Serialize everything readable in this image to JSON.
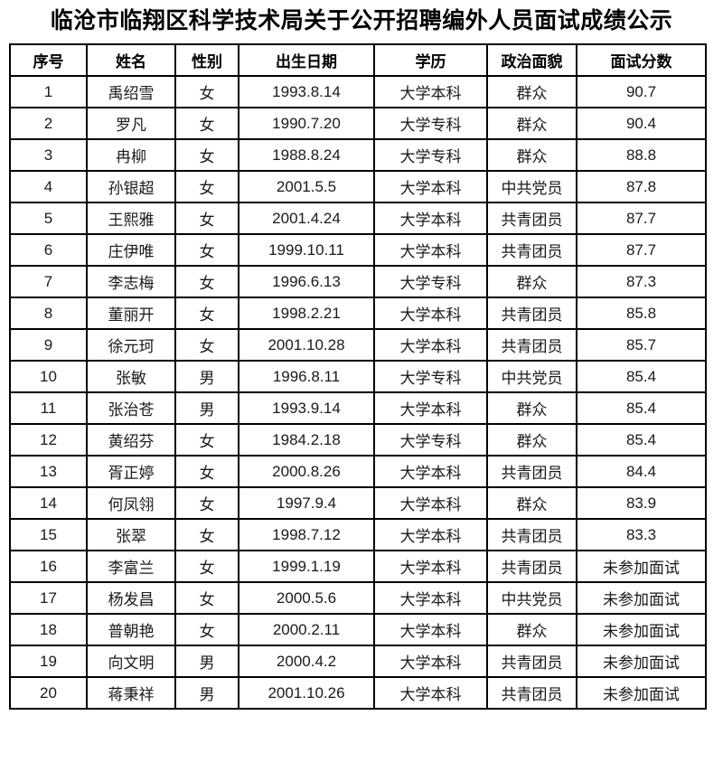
{
  "page": {
    "title": "临沧市临翔区科学技术局关于公开招聘编外人员面试成绩公示"
  },
  "table": {
    "headers": [
      "序号",
      "姓名",
      "性别",
      "出生日期",
      "学历",
      "政治面貌",
      "面试分数"
    ],
    "rows": [
      [
        "1",
        "禹绍雪",
        "女",
        "1993.8.14",
        "大学本科",
        "群众",
        "90.7"
      ],
      [
        "2",
        "罗凡",
        "女",
        "1990.7.20",
        "大学专科",
        "群众",
        "90.4"
      ],
      [
        "3",
        "冉柳",
        "女",
        "1988.8.24",
        "大学专科",
        "群众",
        "88.8"
      ],
      [
        "4",
        "孙银超",
        "女",
        "2001.5.5",
        "大学本科",
        "中共党员",
        "87.8"
      ],
      [
        "5",
        "王熙雅",
        "女",
        "2001.4.24",
        "大学本科",
        "共青团员",
        "87.7"
      ],
      [
        "6",
        "庄伊唯",
        "女",
        "1999.10.11",
        "大学本科",
        "共青团员",
        "87.7"
      ],
      [
        "7",
        "李志梅",
        "女",
        "1996.6.13",
        "大学专科",
        "群众",
        "87.3"
      ],
      [
        "8",
        "董丽开",
        "女",
        "1998.2.21",
        "大学本科",
        "共青团员",
        "85.8"
      ],
      [
        "9",
        "徐元珂",
        "女",
        "2001.10.28",
        "大学本科",
        "共青团员",
        "85.7"
      ],
      [
        "10",
        "张敏",
        "男",
        "1996.8.11",
        "大学专科",
        "中共党员",
        "85.4"
      ],
      [
        "11",
        "张治苍",
        "男",
        "1993.9.14",
        "大学本科",
        "群众",
        "85.4"
      ],
      [
        "12",
        "黄绍芬",
        "女",
        "1984.2.18",
        "大学专科",
        "群众",
        "85.4"
      ],
      [
        "13",
        "胥正婷",
        "女",
        "2000.8.26",
        "大学本科",
        "共青团员",
        "84.4"
      ],
      [
        "14",
        "何凤翎",
        "女",
        "1997.9.4",
        "大学本科",
        "群众",
        "83.9"
      ],
      [
        "15",
        "张翠",
        "女",
        "1998.7.12",
        "大学本科",
        "共青团员",
        "83.3"
      ],
      [
        "16",
        "李富兰",
        "女",
        "1999.1.19",
        "大学本科",
        "共青团员",
        "未参加面试"
      ],
      [
        "17",
        "杨发昌",
        "女",
        "2000.5.6",
        "大学本科",
        "中共党员",
        "未参加面试"
      ],
      [
        "18",
        "普朝艳",
        "女",
        "2000.2.11",
        "大学本科",
        "群众",
        "未参加面试"
      ],
      [
        "19",
        "向文明",
        "男",
        "2000.4.2",
        "大学本科",
        "共青团员",
        "未参加面试"
      ],
      [
        "20",
        "蒋秉祥",
        "男",
        "2001.10.26",
        "大学本科",
        "共青团员",
        "未参加面试"
      ]
    ]
  }
}
